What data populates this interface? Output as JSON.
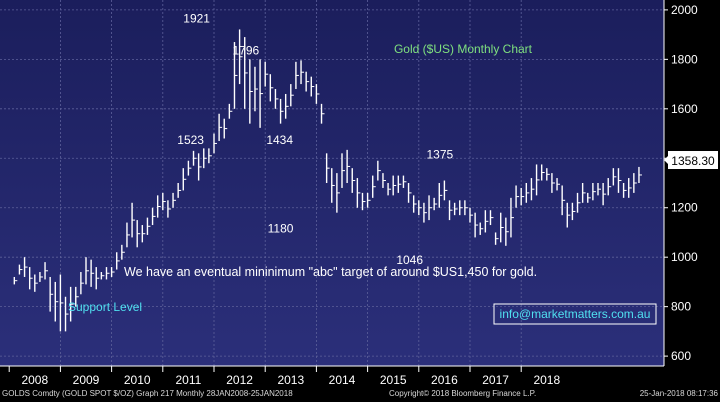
{
  "chart_data": {
    "type": "ohlc",
    "title": "Gold ($US) Monthly Chart",
    "xlabel": "",
    "ylabel": "",
    "ylim": [
      560,
      2040
    ],
    "yticks": [
      600,
      800,
      1000,
      1200,
      1400,
      1600,
      1800,
      2000
    ],
    "xticks": [
      "2008",
      "2009",
      "2010",
      "2011",
      "2012",
      "2013",
      "2014",
      "2015",
      "2016",
      "2017",
      "2018"
    ],
    "grid": true,
    "last_price": "1358.30",
    "annotations": [
      {
        "text": "1921",
        "year": 2011.7,
        "value": 1921
      },
      {
        "text": "1796",
        "year": 2012.7,
        "value": 1796
      },
      {
        "text": "1523",
        "year": 2011.7,
        "value": 1523
      },
      {
        "text": "1434",
        "year": 2013.4,
        "value": 1434
      },
      {
        "text": "1180",
        "year": 2013.3,
        "value": 1180
      },
      {
        "text": "1375",
        "year": 2016.45,
        "value": 1375
      },
      {
        "text": "1046",
        "year": 2015.9,
        "value": 1046
      }
    ],
    "comment": "We have an eventual mininimum \"abc\" target of around $US1,450 for gold.",
    "support_label": "Support Level",
    "contact": "info@marketmatters.com.au",
    "series": [
      {
        "values": [
          [
            1.1,
            920,
            890
          ],
          [
            1.2,
            970,
            930
          ],
          [
            1.3,
            1000,
            920
          ],
          [
            1.4,
            960,
            870
          ],
          [
            1.5,
            930,
            860
          ],
          [
            1.6,
            940,
            900
          ],
          [
            1.7,
            980,
            910
          ],
          [
            1.8,
            920,
            780
          ],
          [
            1.9,
            900,
            740
          ],
          [
            2.0,
            930,
            700
          ],
          [
            2.1,
            840,
            700
          ],
          [
            2.2,
            880,
            740
          ],
          [
            2.3,
            880,
            800
          ],
          [
            2.4,
            940,
            850
          ],
          [
            2.5,
            1000,
            890
          ],
          [
            2.6,
            990,
            880
          ],
          [
            2.7,
            960,
            870
          ],
          [
            2.8,
            940,
            910
          ],
          [
            2.9,
            960,
            910
          ],
          [
            3.0,
            960,
            920
          ],
          [
            3.1,
            1020,
            950
          ],
          [
            3.2,
            1050,
            990
          ],
          [
            3.3,
            1140,
            1040
          ],
          [
            3.4,
            1220,
            1080
          ],
          [
            3.5,
            1150,
            1040
          ],
          [
            3.6,
            1130,
            1060
          ],
          [
            3.7,
            1160,
            1090
          ],
          [
            3.8,
            1200,
            1130
          ],
          [
            3.9,
            1250,
            1160
          ],
          [
            4.0,
            1260,
            1190
          ],
          [
            4.1,
            1230,
            1160
          ],
          [
            4.2,
            1260,
            1200
          ],
          [
            4.3,
            1300,
            1240
          ],
          [
            4.4,
            1360,
            1270
          ],
          [
            4.5,
            1390,
            1330
          ],
          [
            4.6,
            1430,
            1370
          ],
          [
            4.7,
            1420,
            1310
          ],
          [
            4.8,
            1440,
            1360
          ],
          [
            4.9,
            1440,
            1380
          ],
          [
            5.0,
            1500,
            1420
          ],
          [
            5.1,
            1580,
            1470
          ],
          [
            5.2,
            1560,
            1480
          ],
          [
            5.3,
            1620,
            1560
          ],
          [
            5.4,
            1870,
            1600
          ],
          [
            5.5,
            1921,
            1700
          ],
          [
            5.6,
            1890,
            1600
          ],
          [
            5.7,
            1800,
            1540
          ],
          [
            5.8,
            1770,
            1590
          ],
          [
            5.9,
            1800,
            1523
          ],
          [
            6.0,
            1790,
            1690
          ],
          [
            6.1,
            1740,
            1630
          ],
          [
            6.2,
            1680,
            1600
          ],
          [
            6.3,
            1640,
            1540
          ],
          [
            6.4,
            1660,
            1560
          ],
          [
            6.5,
            1700,
            1610
          ],
          [
            6.6,
            1790,
            1680
          ],
          [
            6.7,
            1796,
            1700
          ],
          [
            6.8,
            1750,
            1670
          ],
          [
            6.9,
            1730,
            1650
          ],
          [
            7.0,
            1700,
            1620
          ],
          [
            7.1,
            1620,
            1540
          ],
          [
            7.2,
            1420,
            1300
          ],
          [
            7.3,
            1360,
            1220
          ],
          [
            7.4,
            1340,
            1180
          ],
          [
            7.5,
            1420,
            1280
          ],
          [
            7.6,
            1434,
            1300
          ],
          [
            7.7,
            1360,
            1260
          ],
          [
            7.8,
            1320,
            1200
          ],
          [
            7.9,
            1260,
            1190
          ],
          [
            8.0,
            1260,
            1200
          ],
          [
            8.1,
            1330,
            1240
          ],
          [
            8.2,
            1390,
            1310
          ],
          [
            8.3,
            1340,
            1280
          ],
          [
            8.4,
            1300,
            1250
          ],
          [
            8.5,
            1330,
            1250
          ],
          [
            8.6,
            1330,
            1260
          ],
          [
            8.7,
            1330,
            1280
          ],
          [
            8.8,
            1300,
            1220
          ],
          [
            8.9,
            1250,
            1180
          ],
          [
            9.0,
            1230,
            1170
          ],
          [
            9.1,
            1220,
            1140
          ],
          [
            9.2,
            1250,
            1150
          ],
          [
            9.3,
            1240,
            1190
          ],
          [
            9.4,
            1300,
            1200
          ],
          [
            9.5,
            1310,
            1230
          ],
          [
            9.6,
            1230,
            1150
          ],
          [
            9.7,
            1220,
            1170
          ],
          [
            9.8,
            1230,
            1170
          ],
          [
            9.9,
            1230,
            1170
          ],
          [
            10.0,
            1200,
            1140
          ],
          [
            10.1,
            1180,
            1080
          ],
          [
            10.2,
            1140,
            1090
          ],
          [
            10.3,
            1190,
            1100
          ],
          [
            10.4,
            1190,
            1130
          ],
          [
            10.5,
            1100,
            1050
          ],
          [
            10.6,
            1180,
            1060
          ],
          [
            10.7,
            1160,
            1046
          ],
          [
            10.8,
            1240,
            1080
          ],
          [
            10.9,
            1290,
            1200
          ],
          [
            11.0,
            1280,
            1210
          ],
          [
            11.1,
            1300,
            1220
          ],
          [
            11.2,
            1320,
            1230
          ],
          [
            11.3,
            1375,
            1250
          ],
          [
            11.4,
            1375,
            1310
          ],
          [
            11.5,
            1360,
            1310
          ],
          [
            11.6,
            1340,
            1260
          ],
          [
            11.7,
            1320,
            1270
          ],
          [
            11.8,
            1290,
            1170
          ],
          [
            11.9,
            1220,
            1120
          ],
          [
            12.0,
            1220,
            1150
          ],
          [
            12.1,
            1260,
            1180
          ],
          [
            12.2,
            1300,
            1220
          ],
          [
            12.3,
            1260,
            1220
          ],
          [
            12.4,
            1300,
            1230
          ],
          [
            12.5,
            1300,
            1250
          ],
          [
            12.6,
            1300,
            1210
          ],
          [
            12.7,
            1320,
            1250
          ],
          [
            12.8,
            1360,
            1290
          ],
          [
            12.9,
            1360,
            1260
          ],
          [
            13.0,
            1300,
            1240
          ],
          [
            13.1,
            1320,
            1240
          ],
          [
            13.2,
            1340,
            1260
          ],
          [
            13.3,
            1365,
            1300
          ]
        ]
      }
    ]
  },
  "footer": {
    "left": "GOLDS Comdty (GOLD SPOT $/OZ) Graph 217  Monthly 28JAN2008-25JAN2018",
    "center": "Copyright© 2018 Bloomberg Finance L.P.",
    "right": "25-Jan-2018 08:17:36"
  }
}
